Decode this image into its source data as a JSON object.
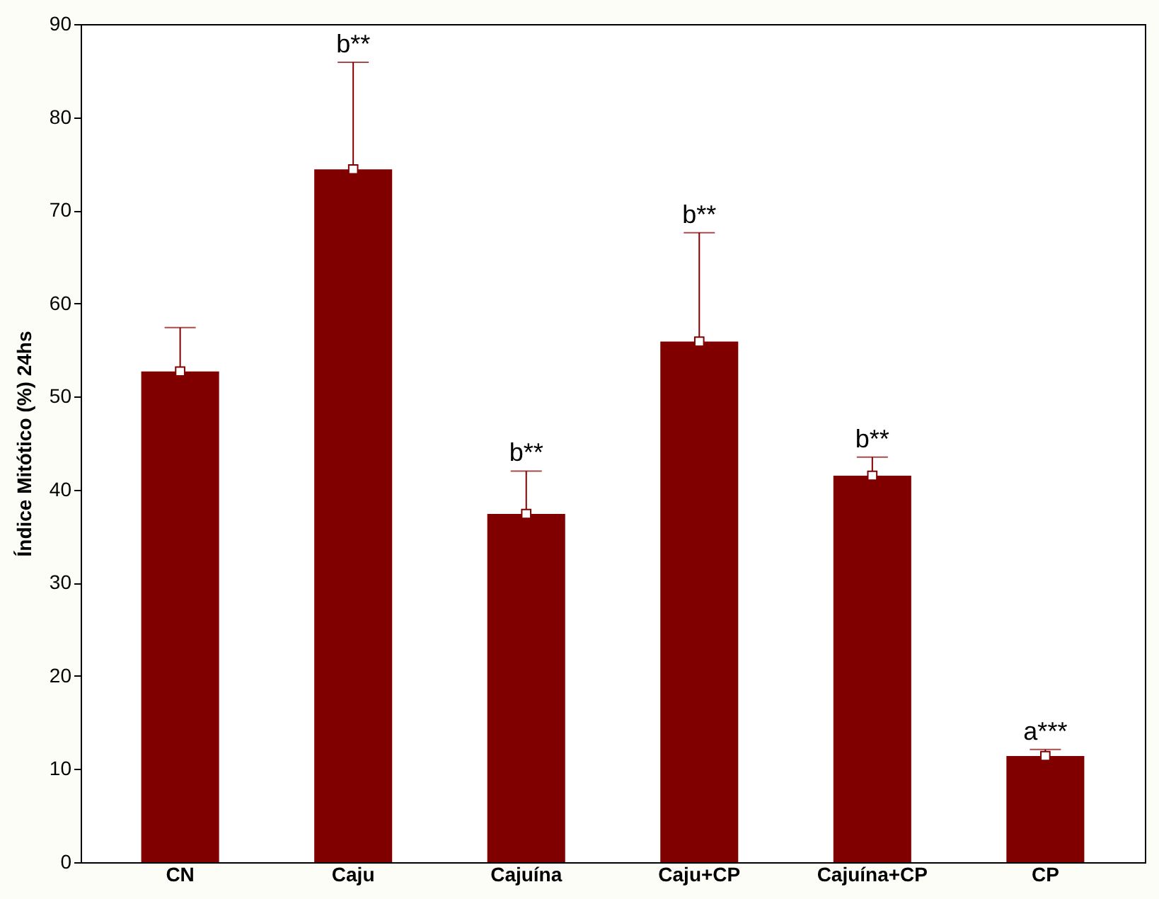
{
  "chart_data": {
    "type": "bar",
    "ylabel": "Índice Mitótico (%) 24hs",
    "categories": [
      "CN",
      "Caju",
      "Cajuína",
      "Caju+CP",
      "Cajuína+CP",
      "CP"
    ],
    "series": [
      {
        "color": "#800000",
        "values": [
          52.7,
          74.4,
          37.4,
          55.9,
          41.5,
          11.4
        ],
        "errors": [
          [
            52.7,
            57.4
          ],
          [
            74.4,
            85.9
          ],
          [
            37.4,
            42.0
          ],
          [
            55.9,
            67.6
          ],
          [
            41.5,
            43.5
          ],
          [
            11.4,
            12.1
          ]
        ]
      },
      {
        "type": "scatter",
        "color": "#ffffff",
        "marker": "square",
        "x": [
          "CN",
          "Caju",
          "Cajuína",
          "Caju+CP",
          "Cajuína+CP",
          "CP"
        ],
        "values": [
          52.7,
          74.4,
          37.4,
          55.9,
          41.5,
          11.4
        ]
      }
    ],
    "ylim": [
      0,
      90
    ],
    "yticks": [
      0,
      10,
      20,
      30,
      40,
      50,
      60,
      70,
      80,
      90
    ],
    "grid": false,
    "annotations": [
      "b**",
      "b**",
      "b**",
      "b**",
      "a***"
    ]
  }
}
